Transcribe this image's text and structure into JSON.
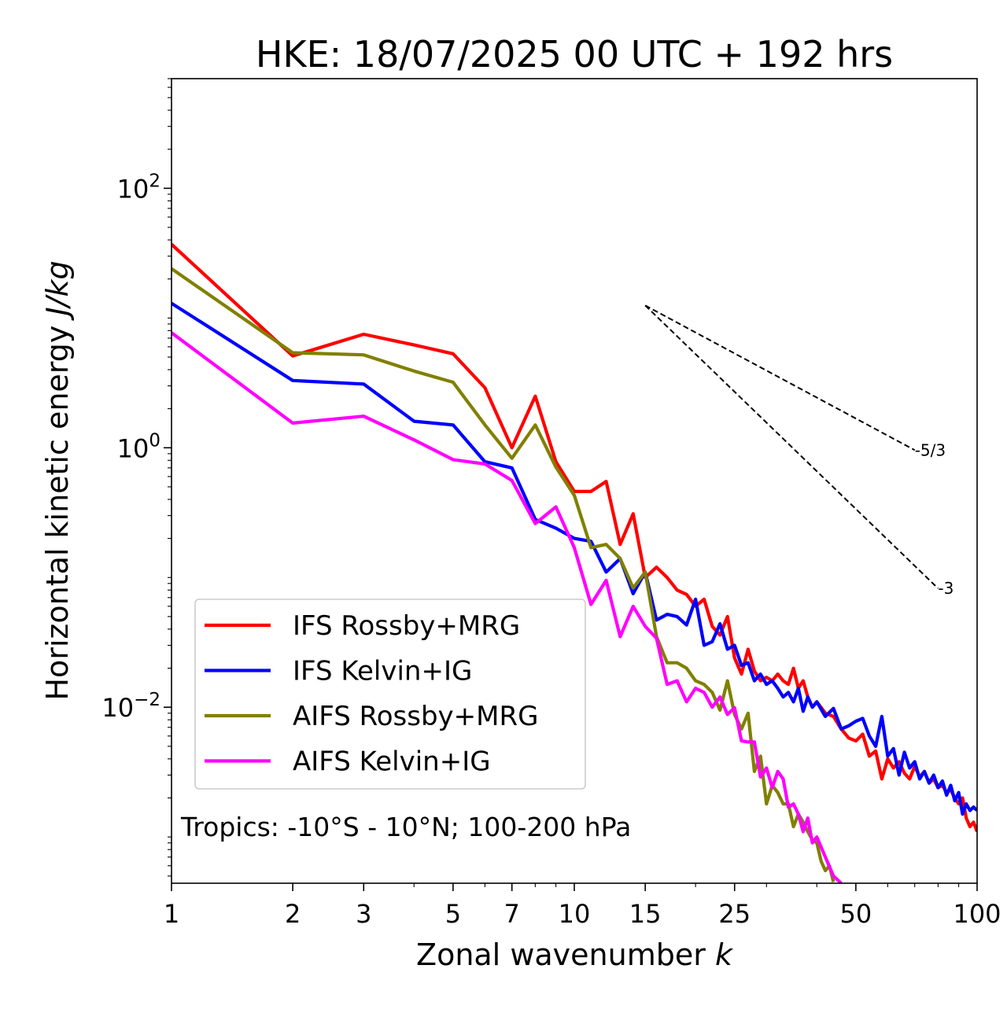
{
  "chart_data": {
    "type": "line",
    "title": "HKE: 18/07/2025 00 UTC + 192 hrs",
    "xlabel": "Zonal wavenumber",
    "xlabel_symbol": "k",
    "ylabel": "Horizontal kinetic energy",
    "ylabel_units": "J/kg",
    "xscale": "log",
    "yscale": "log",
    "xlim": [
      1,
      100
    ],
    "ylim": [
      0.00044,
      700
    ],
    "grid": false,
    "legend_position": "lower-left",
    "x_ticks": [
      {
        "value": 1,
        "label": "1"
      },
      {
        "value": 2,
        "label": "2"
      },
      {
        "value": 3,
        "label": "3"
      },
      {
        "value": 5,
        "label": "5"
      },
      {
        "value": 7,
        "label": "7"
      },
      {
        "value": 10,
        "label": "10"
      },
      {
        "value": 15,
        "label": "15"
      },
      {
        "value": 25,
        "label": "25"
      },
      {
        "value": 50,
        "label": "50"
      },
      {
        "value": 100,
        "label": "100"
      }
    ],
    "y_ticks": [
      {
        "value": 100,
        "base": "10",
        "exp": "2"
      },
      {
        "value": 1,
        "base": "10",
        "exp": "0"
      },
      {
        "value": 0.01,
        "base": "10",
        "exp": "−2"
      }
    ],
    "annotation": "Tropics: -10°S - 10°N; 100-200 hPa",
    "slope_lines": [
      {
        "label": "-5/3",
        "slope": -1.6667,
        "x_start": 15,
        "y_start": 12.5,
        "x_end": 70
      },
      {
        "label": "-3",
        "slope": -3,
        "x_start": 15,
        "y_start": 12.5,
        "x_end": 80
      }
    ],
    "series": [
      {
        "name": "IFS Rossby+MRG",
        "color": "#ff0000",
        "points": [
          [
            1,
            37
          ],
          [
            2,
            5.1
          ],
          [
            3,
            7.5
          ],
          [
            4,
            6.2
          ],
          [
            5,
            5.3
          ],
          [
            6,
            2.9
          ],
          [
            7,
            1.0
          ],
          [
            8,
            2.5
          ],
          [
            9,
            0.78
          ],
          [
            10,
            0.46
          ],
          [
            11,
            0.46
          ],
          [
            12,
            0.55
          ],
          [
            13,
            0.18
          ],
          [
            14,
            0.31
          ],
          [
            15,
            0.1
          ],
          [
            16,
            0.12
          ],
          [
            17,
            0.1
          ],
          [
            18,
            0.08
          ],
          [
            19,
            0.074
          ],
          [
            20,
            0.06
          ],
          [
            21,
            0.068
          ],
          [
            22,
            0.042
          ],
          [
            23,
            0.036
          ],
          [
            24,
            0.05
          ],
          [
            25,
            0.024
          ],
          [
            26,
            0.018
          ],
          [
            27,
            0.028
          ],
          [
            28,
            0.019
          ],
          [
            29,
            0.016
          ],
          [
            30,
            0.017
          ],
          [
            31,
            0.016
          ],
          [
            32,
            0.018
          ],
          [
            33,
            0.016
          ],
          [
            34,
            0.015
          ],
          [
            35,
            0.02
          ],
          [
            36,
            0.014
          ],
          [
            37,
            0.016
          ],
          [
            38,
            0.012
          ],
          [
            39,
            0.01
          ],
          [
            40,
            0.011
          ],
          [
            42,
            0.009
          ],
          [
            44,
            0.0085
          ],
          [
            46,
            0.0068
          ],
          [
            48,
            0.0058
          ],
          [
            50,
            0.0055
          ],
          [
            52,
            0.0062
          ],
          [
            54,
            0.0042
          ],
          [
            56,
            0.0046
          ],
          [
            58,
            0.0028
          ],
          [
            60,
            0.004
          ],
          [
            62,
            0.0034
          ],
          [
            64,
            0.0038
          ],
          [
            66,
            0.0031
          ],
          [
            68,
            0.0028
          ],
          [
            70,
            0.0035
          ],
          [
            72,
            0.0029
          ],
          [
            74,
            0.0032
          ],
          [
            76,
            0.0026
          ],
          [
            78,
            0.0028
          ],
          [
            80,
            0.0024
          ],
          [
            82,
            0.0025
          ],
          [
            84,
            0.0022
          ],
          [
            86,
            0.0023
          ],
          [
            88,
            0.002
          ],
          [
            90,
            0.0018
          ],
          [
            92,
            0.002
          ],
          [
            94,
            0.0014
          ],
          [
            96,
            0.0012
          ],
          [
            98,
            0.0013
          ],
          [
            100,
            0.0011
          ]
        ]
      },
      {
        "name": "IFS Kelvin+IG",
        "color": "#0000ff",
        "points": [
          [
            1,
            13
          ],
          [
            2,
            3.3
          ],
          [
            3,
            3.1
          ],
          [
            4,
            1.6
          ],
          [
            5,
            1.5
          ],
          [
            6,
            0.78
          ],
          [
            7,
            0.7
          ],
          [
            8,
            0.28
          ],
          [
            9,
            0.24
          ],
          [
            10,
            0.2
          ],
          [
            11,
            0.19
          ],
          [
            12,
            0.11
          ],
          [
            13,
            0.14
          ],
          [
            14,
            0.075
          ],
          [
            15,
            0.11
          ],
          [
            16,
            0.047
          ],
          [
            17,
            0.052
          ],
          [
            18,
            0.05
          ],
          [
            19,
            0.043
          ],
          [
            20,
            0.068
          ],
          [
            21,
            0.03
          ],
          [
            22,
            0.032
          ],
          [
            23,
            0.044
          ],
          [
            24,
            0.028
          ],
          [
            25,
            0.03
          ],
          [
            26,
            0.021
          ],
          [
            27,
            0.022
          ],
          [
            28,
            0.016
          ],
          [
            29,
            0.018
          ],
          [
            30,
            0.015
          ],
          [
            31,
            0.016
          ],
          [
            32,
            0.014
          ],
          [
            33,
            0.012
          ],
          [
            34,
            0.013
          ],
          [
            35,
            0.011
          ],
          [
            36,
            0.014
          ],
          [
            37,
            0.0093
          ],
          [
            38,
            0.012
          ],
          [
            39,
            0.01
          ],
          [
            40,
            0.011
          ],
          [
            42,
            0.0085
          ],
          [
            44,
            0.0098
          ],
          [
            46,
            0.0068
          ],
          [
            48,
            0.0072
          ],
          [
            50,
            0.0078
          ],
          [
            52,
            0.0082
          ],
          [
            54,
            0.006
          ],
          [
            56,
            0.005
          ],
          [
            58,
            0.0085
          ],
          [
            60,
            0.0042
          ],
          [
            62,
            0.0048
          ],
          [
            64,
            0.003
          ],
          [
            66,
            0.0045
          ],
          [
            68,
            0.0034
          ],
          [
            70,
            0.0038
          ],
          [
            72,
            0.0028
          ],
          [
            74,
            0.0032
          ],
          [
            76,
            0.0026
          ],
          [
            78,
            0.003
          ],
          [
            80,
            0.0024
          ],
          [
            82,
            0.0027
          ],
          [
            84,
            0.0021
          ],
          [
            86,
            0.0025
          ],
          [
            88,
            0.0019
          ],
          [
            90,
            0.0022
          ],
          [
            92,
            0.0015
          ],
          [
            94,
            0.0018
          ],
          [
            96,
            0.0016
          ],
          [
            98,
            0.0017
          ],
          [
            100,
            0.0016
          ]
        ]
      },
      {
        "name": "AIFS Rossby+MRG",
        "color": "#808000",
        "points": [
          [
            1,
            24
          ],
          [
            2,
            5.4
          ],
          [
            3,
            5.2
          ],
          [
            4,
            3.9
          ],
          [
            5,
            3.2
          ],
          [
            6,
            1.5
          ],
          [
            7,
            0.83
          ],
          [
            8,
            1.5
          ],
          [
            9,
            0.71
          ],
          [
            10,
            0.43
          ],
          [
            11,
            0.17
          ],
          [
            12,
            0.18
          ],
          [
            13,
            0.14
          ],
          [
            14,
            0.083
          ],
          [
            15,
            0.11
          ],
          [
            16,
            0.035
          ],
          [
            17,
            0.022
          ],
          [
            18,
            0.022
          ],
          [
            19,
            0.02
          ],
          [
            20,
            0.016
          ],
          [
            21,
            0.015
          ],
          [
            22,
            0.013
          ],
          [
            23,
            0.0095
          ],
          [
            24,
            0.016
          ],
          [
            25,
            0.0088
          ],
          [
            26,
            0.0068
          ],
          [
            27,
            0.009
          ],
          [
            28,
            0.0032
          ],
          [
            29,
            0.0042
          ],
          [
            30,
            0.0018
          ],
          [
            31,
            0.0025
          ],
          [
            32,
            0.0022
          ],
          [
            33,
            0.0018
          ],
          [
            34,
            0.0018
          ],
          [
            35,
            0.0012
          ],
          [
            36,
            0.0015
          ],
          [
            37,
            0.0013
          ],
          [
            38,
            0.0011
          ],
          [
            39,
            0.00095
          ],
          [
            40,
            0.0009
          ],
          [
            41,
            0.00065
          ],
          [
            42,
            0.00055
          ],
          [
            43,
            0.0006
          ],
          [
            44,
            0.00045
          ]
        ]
      },
      {
        "name": "AIFS Kelvin+IG",
        "color": "#ff00ff",
        "points": [
          [
            1,
            7.7
          ],
          [
            2,
            1.55
          ],
          [
            3,
            1.75
          ],
          [
            4,
            1.15
          ],
          [
            5,
            0.81
          ],
          [
            6,
            0.75
          ],
          [
            7,
            0.56
          ],
          [
            8,
            0.26
          ],
          [
            9,
            0.35
          ],
          [
            10,
            0.17
          ],
          [
            11,
            0.062
          ],
          [
            12,
            0.095
          ],
          [
            13,
            0.035
          ],
          [
            14,
            0.06
          ],
          [
            15,
            0.042
          ],
          [
            16,
            0.034
          ],
          [
            17,
            0.015
          ],
          [
            18,
            0.016
          ],
          [
            19,
            0.011
          ],
          [
            20,
            0.014
          ],
          [
            21,
            0.013
          ],
          [
            22,
            0.01
          ],
          [
            23,
            0.012
          ],
          [
            24,
            0.0088
          ],
          [
            25,
            0.0099
          ],
          [
            26,
            0.0055
          ],
          [
            27,
            0.0054
          ],
          [
            28,
            0.0054
          ],
          [
            29,
            0.0029
          ],
          [
            30,
            0.0034
          ],
          [
            31,
            0.0024
          ],
          [
            32,
            0.0032
          ],
          [
            33,
            0.0028
          ],
          [
            34,
            0.0017
          ],
          [
            35,
            0.0018
          ],
          [
            36,
            0.0015
          ],
          [
            37,
            0.0011
          ],
          [
            38,
            0.0014
          ],
          [
            39,
            0.0009
          ],
          [
            40,
            0.001
          ],
          [
            42,
            0.0007
          ],
          [
            44,
            0.0005
          ],
          [
            46,
            0.00044
          ]
        ]
      }
    ]
  }
}
